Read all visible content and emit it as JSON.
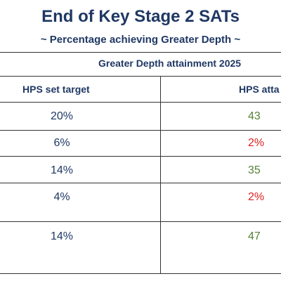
{
  "title": "End of Key Stage 2 SATs",
  "subtitle": "~ Percentage achieving Greater Depth ~",
  "table": {
    "header": "Greater Depth attainment 2025",
    "columns": [
      "HPS set target",
      "HPS atta"
    ],
    "rows": [
      {
        "target": "20%",
        "attained": "43",
        "status": "above"
      },
      {
        "target": "6%",
        "attained": "2%",
        "status": "below"
      },
      {
        "target": "14%",
        "attained": "35",
        "status": "above"
      },
      {
        "target": "4%",
        "attained": "2%",
        "status": "below"
      },
      {
        "target": "14%",
        "attained": "47",
        "status": "above"
      }
    ]
  },
  "colors": {
    "title": "#1f3864",
    "above_target": "#548235",
    "below_target": "#e02020",
    "lines": "#333333"
  }
}
